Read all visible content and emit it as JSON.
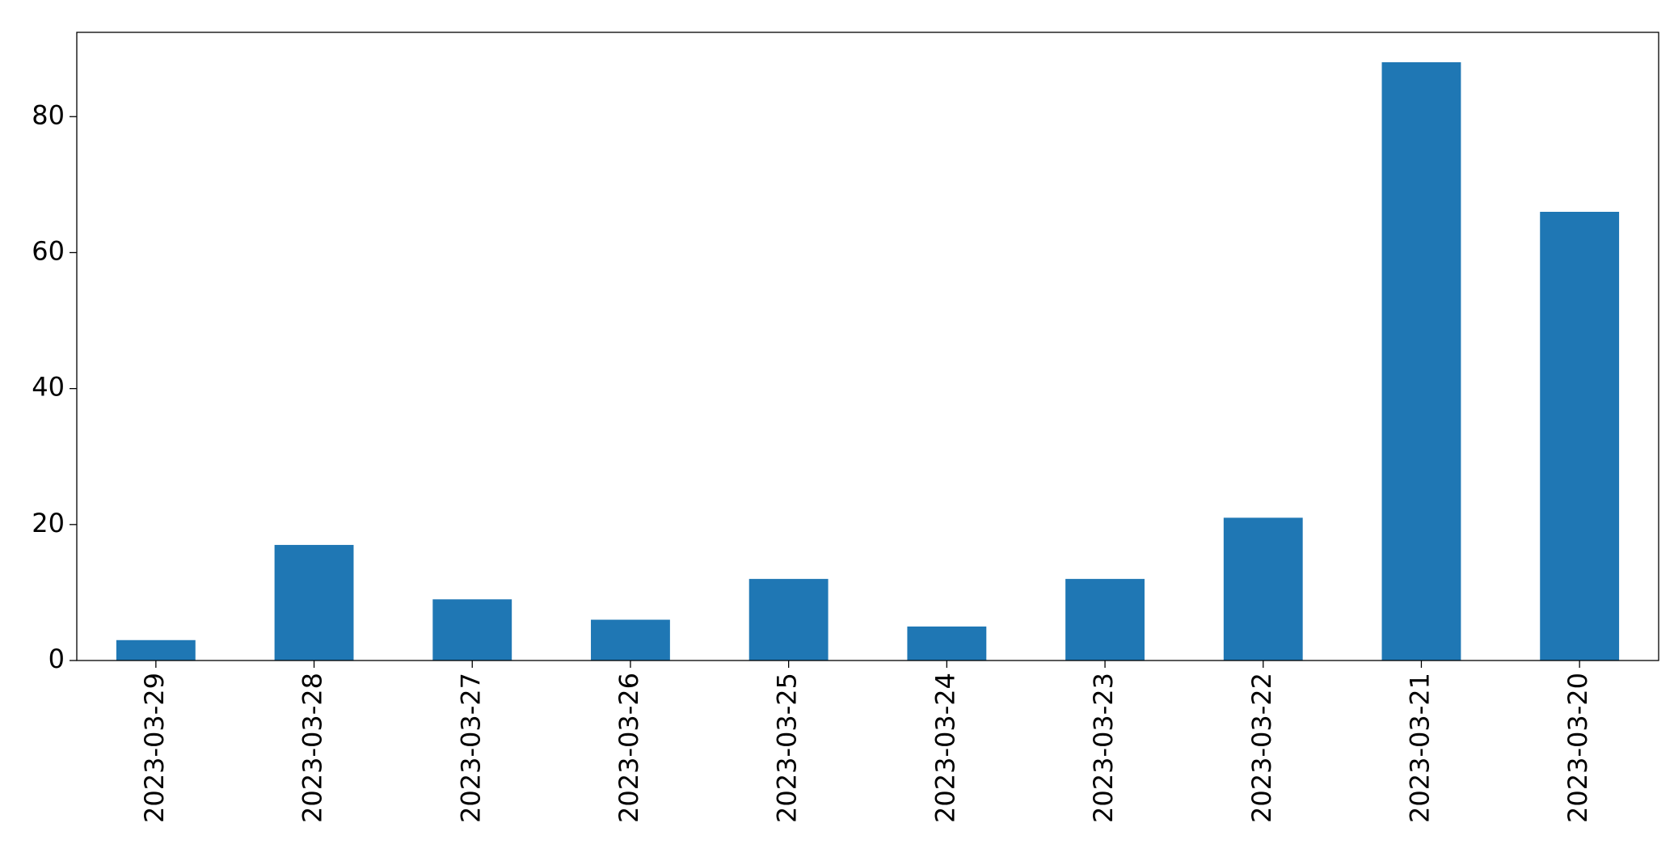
{
  "chart_data": {
    "type": "bar",
    "categories": [
      "2023-03-29",
      "2023-03-28",
      "2023-03-27",
      "2023-03-26",
      "2023-03-25",
      "2023-03-24",
      "2023-03-23",
      "2023-03-22",
      "2023-03-21",
      "2023-03-20"
    ],
    "values": [
      3,
      17,
      9,
      6,
      12,
      5,
      12,
      21,
      88,
      66
    ],
    "color": "#1f77b4",
    "ylim": [
      0,
      92.4
    ],
    "yticks": [
      0,
      20,
      40,
      60,
      80
    ],
    "grid": false
  }
}
